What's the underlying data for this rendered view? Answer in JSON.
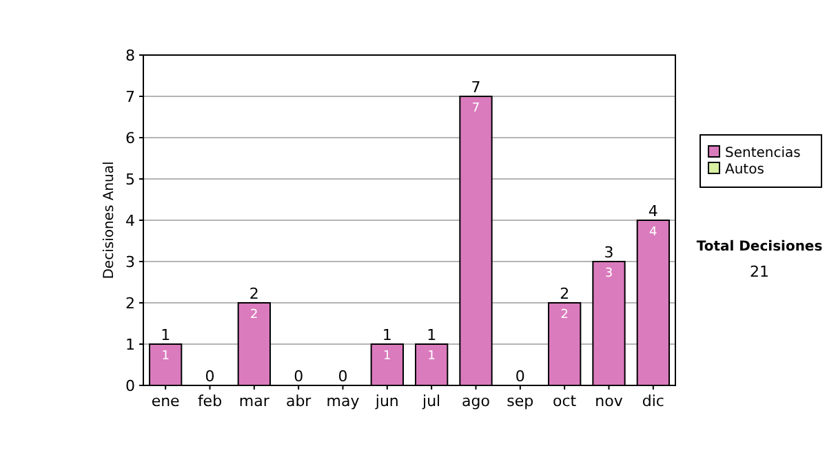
{
  "chart_data": {
    "type": "bar",
    "ylabel": "Decisiones Anual",
    "categories": [
      "ene",
      "feb",
      "mar",
      "abr",
      "may",
      "jun",
      "jul",
      "ago",
      "sep",
      "oct",
      "nov",
      "dic"
    ],
    "series": [
      {
        "name": "Sentencias",
        "color": "#da7bbd",
        "values": [
          1,
          0,
          2,
          0,
          0,
          1,
          1,
          7,
          0,
          2,
          3,
          4
        ],
        "value_labels": [
          "1",
          null,
          "2",
          null,
          null,
          "1",
          "1",
          "7",
          null,
          "2",
          "3",
          "4"
        ]
      },
      {
        "name": "Autos",
        "color": "#d9f0a3",
        "values": [
          0,
          0,
          0,
          0,
          0,
          0,
          0,
          0,
          0,
          0,
          0,
          0
        ]
      }
    ],
    "totals": [
      "1",
      "0",
      "2",
      "0",
      "0",
      "1",
      "1",
      "7",
      "0",
      "2",
      "3",
      "4"
    ],
    "ylim": [
      0,
      8
    ],
    "yticks": [
      0,
      1,
      2,
      3,
      4,
      5,
      6,
      7,
      8
    ],
    "grid": "y",
    "legend": "right",
    "annotations": [
      "Total Decisiones",
      "21"
    ]
  }
}
